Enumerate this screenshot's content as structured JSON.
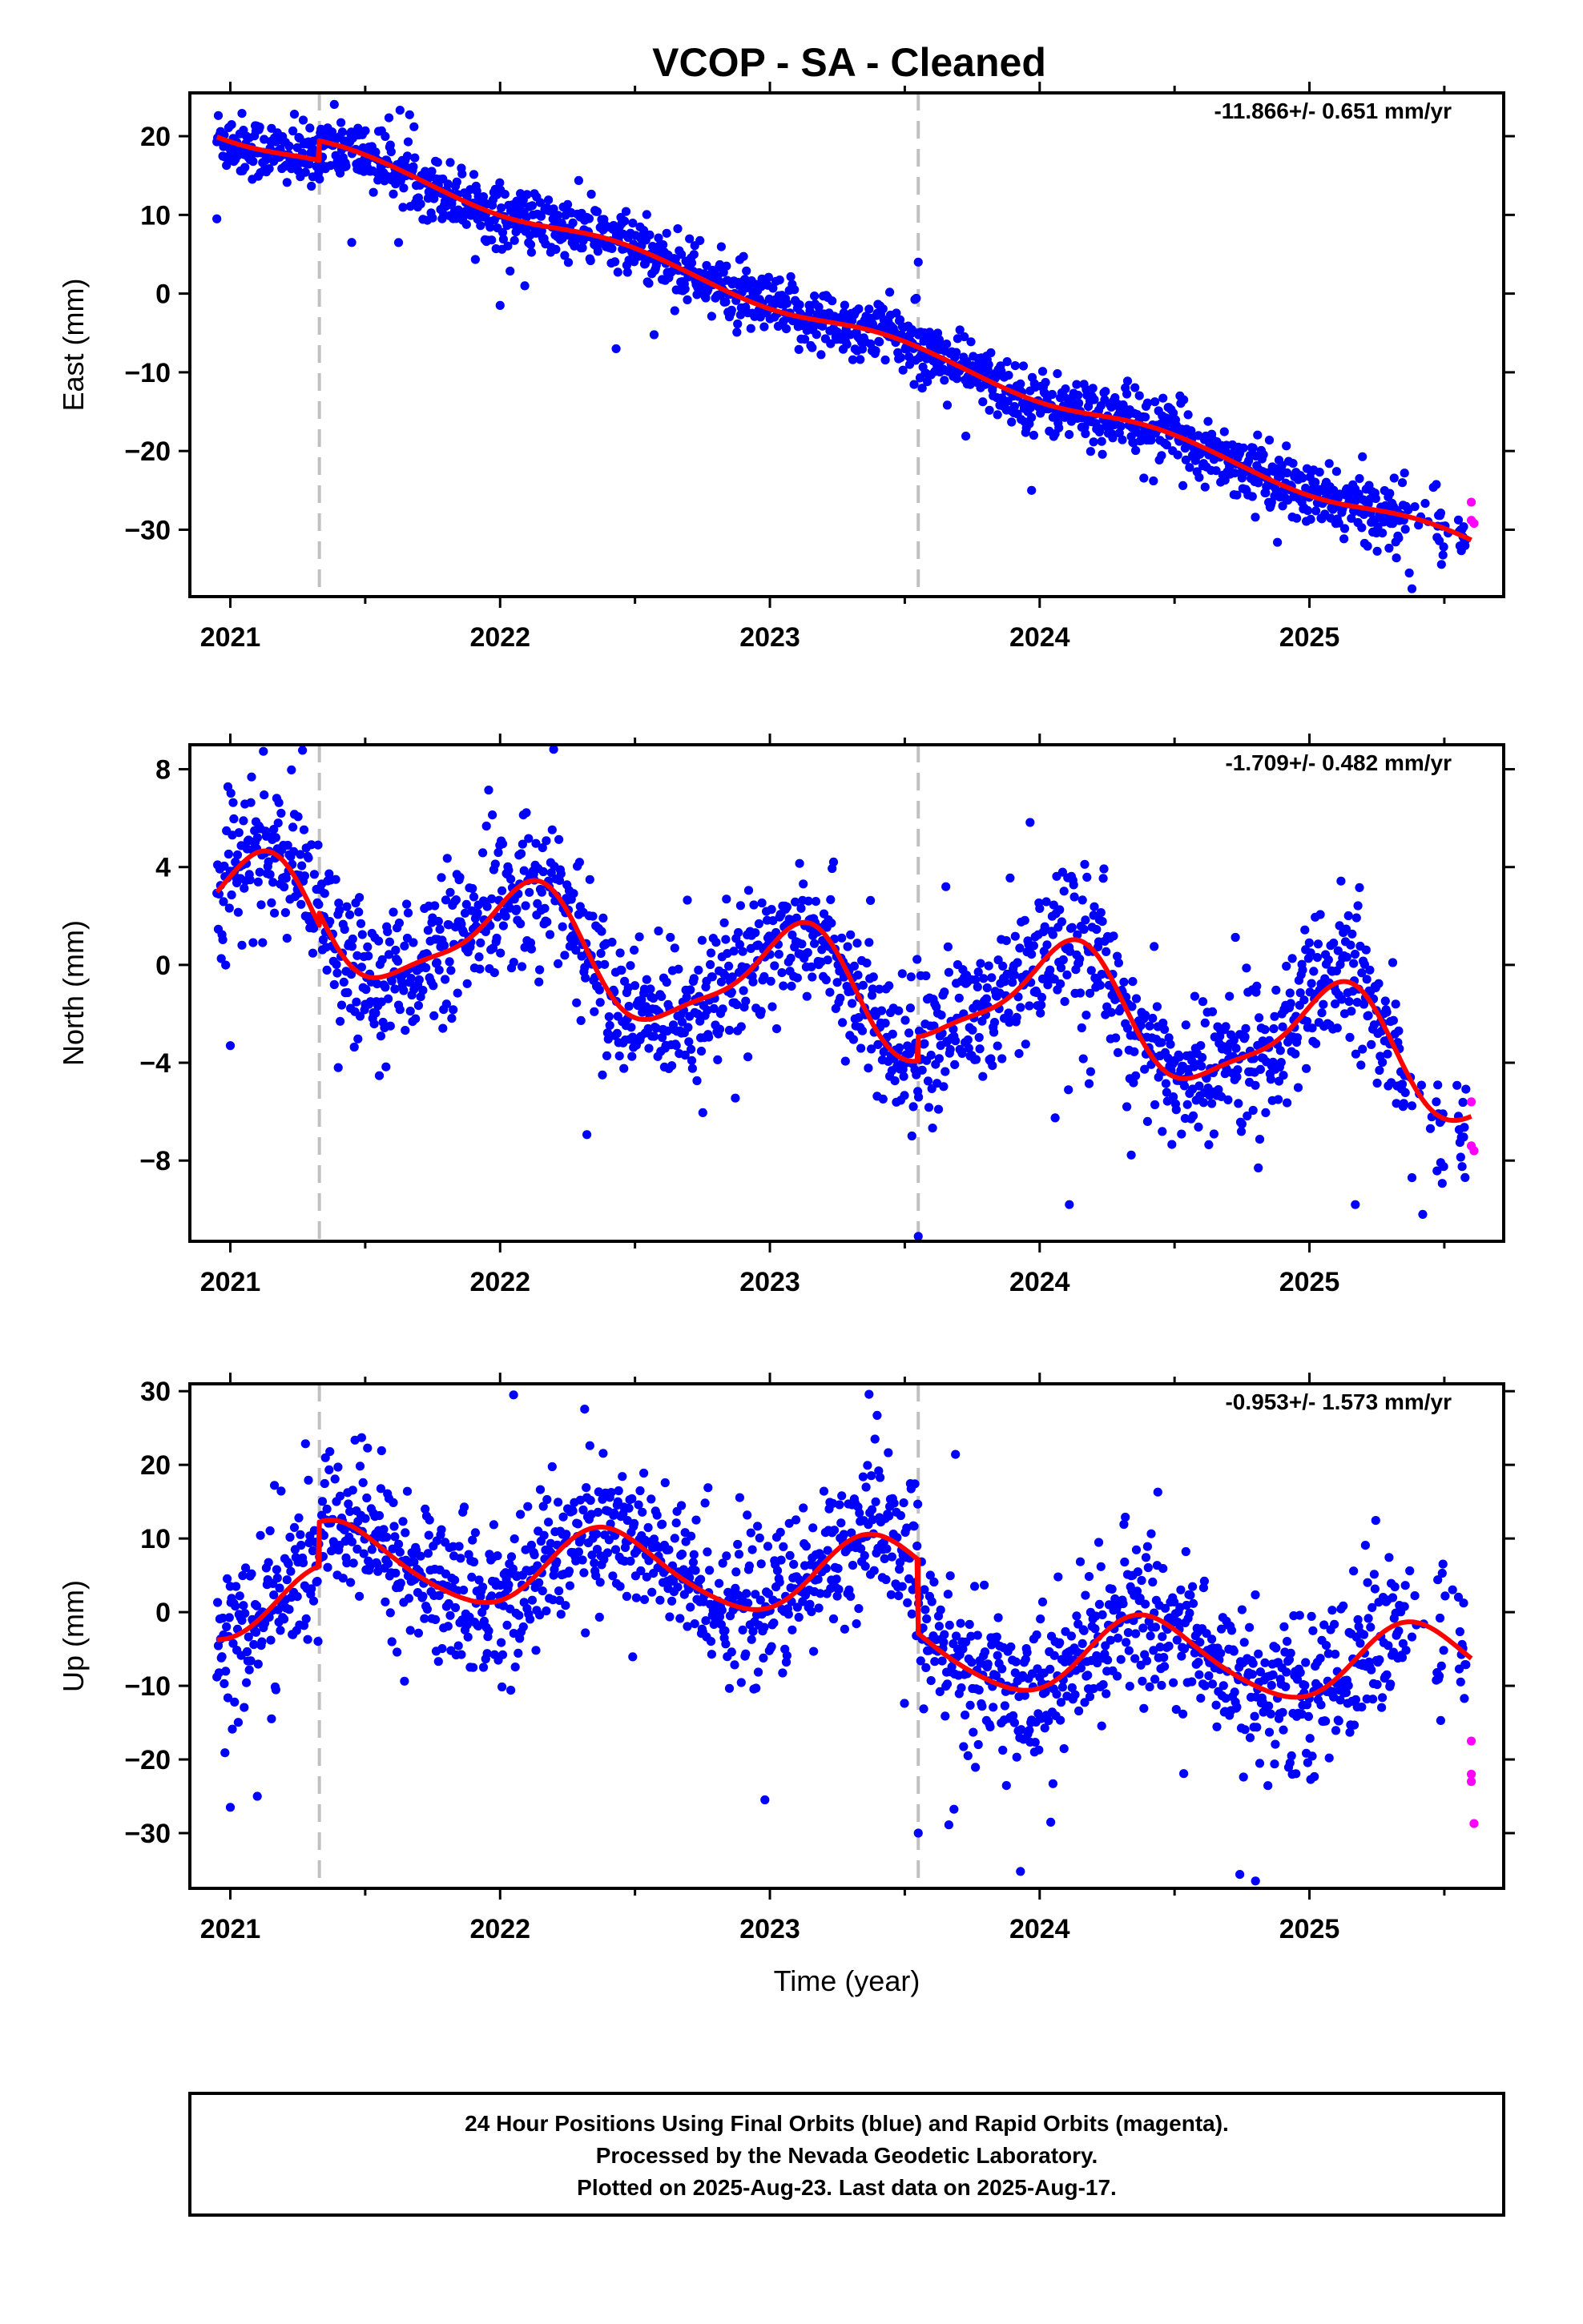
{
  "title": "VCOP  - SA - Cleaned",
  "footer": {
    "line1": "24 Hour Positions Using Final Orbits (blue) and Rapid Orbits (magenta).",
    "line2": "Processed by the Nevada Geodetic Laboratory.",
    "line3": "Plotted on 2025-Aug-23. Last data on 2025-Aug-17."
  },
  "colors": {
    "final": "#0000ff",
    "rapid": "#ff00ff",
    "model": "#ff0000",
    "step": "#c0c0c0"
  },
  "chart_data": [
    {
      "type": "scatter",
      "ylabel": "East (mm)",
      "xlabel": "",
      "rate": "-11.866+/- 0.651 mm/yr",
      "xlim": [
        2020.85,
        2025.72
      ],
      "ylim": [
        -38.5,
        25.5
      ],
      "xticks": [
        2021,
        2022,
        2023,
        2024,
        2025
      ],
      "yticks": [
        20,
        10,
        0,
        -10,
        -20,
        -30
      ],
      "steps": [
        2021.33,
        2023.55
      ],
      "trend": {
        "t0": 2020.95,
        "v0": 20.8,
        "rate": -11.866,
        "offsets": [
          [
            2021.33,
            2.5
          ]
        ]
      },
      "seasonal": [
        [
          0.9,
          0.22,
          0.7,
          0.05
        ]
      ],
      "scatter_sd": 2.0,
      "rapid_points": [
        [
          2025.6,
          -26.5
        ],
        [
          2025.6,
          -28.8
        ],
        [
          2025.61,
          -29.2
        ]
      ],
      "outliers": [
        [
          2020.95,
          9.5
        ],
        [
          2021.45,
          6.5
        ],
        [
          2022.0,
          -1.5
        ],
        [
          2022.43,
          -7.0
        ],
        [
          2023.55,
          4.0
        ],
        [
          2023.97,
          -25.0
        ],
        [
          2025.37,
          -35.5
        ],
        [
          2025.38,
          -37.5
        ]
      ]
    },
    {
      "type": "scatter",
      "ylabel": "North (mm)",
      "xlabel": "",
      "rate": "-1.709+/- 0.482 mm/yr",
      "xlim": [
        2020.85,
        2025.72
      ],
      "ylim": [
        -11.3,
        9.0
      ],
      "xticks": [
        2021,
        2022,
        2023,
        2024,
        2025
      ],
      "yticks": [
        8,
        4,
        0,
        -4,
        -8
      ],
      "steps": [
        2021.33,
        2023.55
      ],
      "trend": {
        "t0": 2020.95,
        "v0": 2.2,
        "rate": -1.709,
        "offsets": [
          [
            2021.33,
            0.5
          ],
          [
            2023.55,
            1.0
          ]
        ]
      },
      "seasonal": [
        [
          2.3,
          0.85,
          0.55,
          0.6
        ]
      ],
      "scatter_sd": 1.4,
      "rapid_points": [
        [
          2025.6,
          -5.6
        ],
        [
          2025.6,
          -7.4
        ],
        [
          2025.61,
          -7.6
        ]
      ],
      "outliers": [
        [
          2021.0,
          -3.3
        ],
        [
          2021.4,
          -4.2
        ],
        [
          2023.55,
          -11.1
        ],
        [
          2024.11,
          -9.8
        ],
        [
          2025.17,
          -9.8
        ],
        [
          2025.42,
          -10.2
        ],
        [
          2025.38,
          -8.7
        ]
      ]
    },
    {
      "type": "scatter",
      "ylabel": "Up (mm)",
      "xlabel": "Time (year)",
      "rate": "-0.953+/- 1.573 mm/yr",
      "xlim": [
        2020.85,
        2025.72
      ],
      "ylim": [
        -37.5,
        31.0
      ],
      "xticks": [
        2021,
        2022,
        2023,
        2024,
        2025
      ],
      "yticks": [
        30,
        20,
        10,
        0,
        -10,
        -20,
        -30
      ],
      "steps": [
        2021.33,
        2023.55
      ],
      "trend": {
        "t0": 2020.95,
        "v0": 1.2,
        "rate": -0.953,
        "offsets": [
          [
            2021.33,
            6.0
          ],
          [
            2023.55,
            -10.0
          ]
        ]
      },
      "seasonal": [
        [
          5.2,
          0.15,
          1.2,
          0.7
        ]
      ],
      "scatter_sd": 5.0,
      "rapid_points": [
        [
          2025.6,
          -17.5
        ],
        [
          2025.6,
          -22.0
        ],
        [
          2025.6,
          -23.0
        ],
        [
          2025.61,
          -28.7
        ]
      ],
      "outliers": [
        [
          2022.05,
          29.5
        ],
        [
          2021.0,
          -26.5
        ],
        [
          2021.1,
          -25.0
        ],
        [
          2023.55,
          -30.0
        ],
        [
          2024.8,
          -36.5
        ]
      ]
    }
  ]
}
